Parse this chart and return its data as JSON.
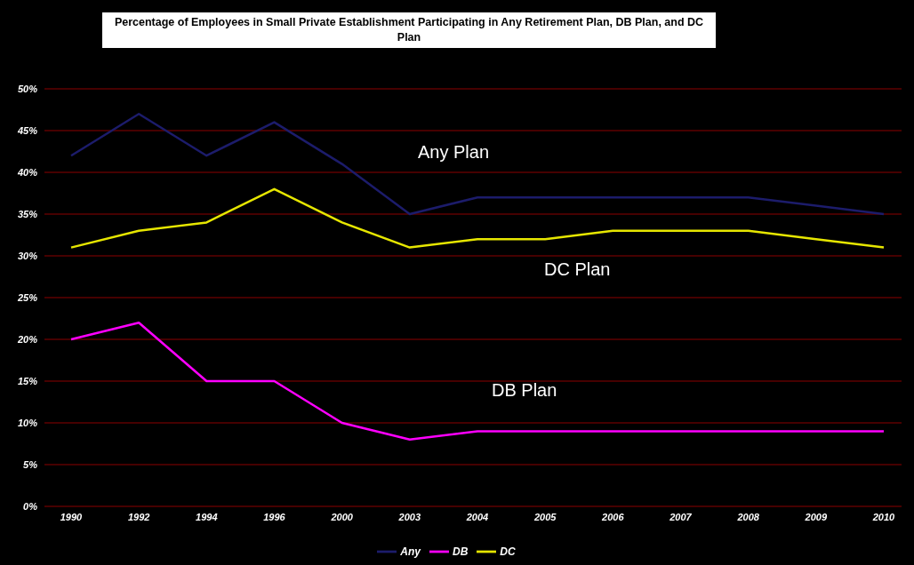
{
  "chart_data": {
    "type": "line",
    "title": "Percentage of Employees in Small Private Establishment Participating in Any Retirement Plan, DB Plan, and DC Plan",
    "categories": [
      "1990",
      "1992",
      "1994",
      "1996",
      "2000",
      "2003",
      "2004",
      "2005",
      "2006",
      "2007",
      "2008",
      "2009",
      "2010"
    ],
    "series": [
      {
        "name": "Any",
        "color": "#1c1c6b",
        "values": [
          42,
          47,
          42,
          46,
          41,
          35,
          37,
          37,
          37,
          37,
          37,
          36,
          35
        ]
      },
      {
        "name": "DB",
        "color": "#ff00ff",
        "values": [
          20,
          22,
          15,
          15,
          10,
          8,
          9,
          9,
          9,
          9,
          9,
          9,
          9
        ]
      },
      {
        "name": "DC",
        "color": "#e6e600",
        "values": [
          31,
          33,
          34,
          38,
          34,
          31,
          32,
          32,
          33,
          33,
          33,
          32,
          31
        ]
      }
    ],
    "ylim": [
      0,
      50
    ],
    "yticks": [
      {
        "value": 0,
        "label": "0%"
      },
      {
        "value": 5,
        "label": "5%"
      },
      {
        "value": 10,
        "label": "10%"
      },
      {
        "value": 15,
        "label": "15%"
      },
      {
        "value": 20,
        "label": "20%"
      },
      {
        "value": 25,
        "label": "25%"
      },
      {
        "value": 30,
        "label": "30%"
      },
      {
        "value": 35,
        "label": "35%"
      },
      {
        "value": 40,
        "label": "40%"
      },
      {
        "value": 45,
        "label": "45%"
      },
      {
        "value": 50,
        "label": "50%"
      }
    ],
    "annotations": [
      "Any Plan",
      "DC Plan",
      "DB Plan"
    ],
    "grid": "y",
    "legend": "bottom",
    "marker": "none",
    "line_style": "solid"
  }
}
